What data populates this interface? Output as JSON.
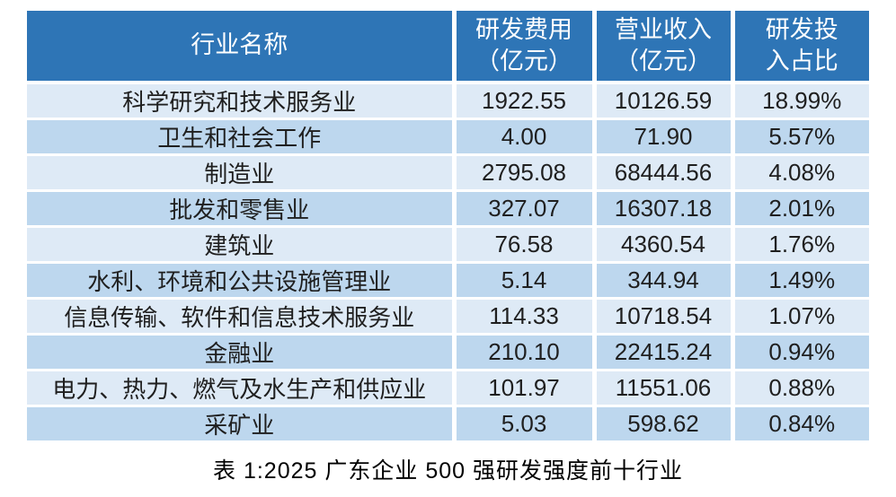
{
  "table": {
    "columns": [
      {
        "label": "行业名称"
      },
      {
        "label": "研发费用\n（亿元）"
      },
      {
        "label": "营业收入\n（亿元）"
      },
      {
        "label": "研发投\n入占比"
      }
    ],
    "rows": [
      {
        "industry": "科学研究和技术服务业",
        "rd_expense": "1922.55",
        "revenue": "10126.59",
        "ratio": "18.99%"
      },
      {
        "industry": "卫生和社会工作",
        "rd_expense": "4.00",
        "revenue": "71.90",
        "ratio": "5.57%"
      },
      {
        "industry": "制造业",
        "rd_expense": "2795.08",
        "revenue": "68444.56",
        "ratio": "4.08%"
      },
      {
        "industry": "批发和零售业",
        "rd_expense": "327.07",
        "revenue": "16307.18",
        "ratio": "2.01%"
      },
      {
        "industry": "建筑业",
        "rd_expense": "76.58",
        "revenue": "4360.54",
        "ratio": "1.76%"
      },
      {
        "industry": "水利、环境和公共设施管理业",
        "rd_expense": "5.14",
        "revenue": "344.94",
        "ratio": "1.49%"
      },
      {
        "industry": "信息传输、软件和信息技术服务业",
        "rd_expense": "114.33",
        "revenue": "10718.54",
        "ratio": "1.07%"
      },
      {
        "industry": "金融业",
        "rd_expense": "210.10",
        "revenue": "22415.24",
        "ratio": "0.94%"
      },
      {
        "industry": "电力、热力、燃气及水生产和供应业",
        "rd_expense": "101.97",
        "revenue": "11551.06",
        "ratio": "0.88%"
      },
      {
        "industry": "采矿业",
        "rd_expense": "5.03",
        "revenue": "598.62",
        "ratio": "0.84%"
      }
    ]
  },
  "caption": {
    "text": "表 1:2025 广东企业 500 强研发强度前十行业"
  },
  "colors": {
    "header_bg": "#2E75B6",
    "row_light": "#DEEAF6",
    "row_dark": "#BDD7EE",
    "header_text": "#FFFFFF",
    "body_text": "#1F1F1F"
  },
  "chart_data": {
    "type": "table",
    "title": "表 1:2025 广东企业 500 强研发强度前十行业",
    "columns": [
      "行业名称",
      "研发费用（亿元）",
      "营业收入（亿元）",
      "研发投入占比"
    ],
    "rows": [
      [
        "科学研究和技术服务业",
        1922.55,
        10126.59,
        "18.99%"
      ],
      [
        "卫生和社会工作",
        4.0,
        71.9,
        "5.57%"
      ],
      [
        "制造业",
        2795.08,
        68444.56,
        "4.08%"
      ],
      [
        "批发和零售业",
        327.07,
        16307.18,
        "2.01%"
      ],
      [
        "建筑业",
        76.58,
        4360.54,
        "1.76%"
      ],
      [
        "水利、环境和公共设施管理业",
        5.14,
        344.94,
        "1.49%"
      ],
      [
        "信息传输、软件和信息技术服务业",
        114.33,
        10718.54,
        "1.07%"
      ],
      [
        "金融业",
        210.1,
        22415.24,
        "0.94%"
      ],
      [
        "电力、热力、燃气及水生产和供应业",
        101.97,
        11551.06,
        "0.88%"
      ],
      [
        "采矿业",
        5.03,
        598.62,
        "0.84%"
      ]
    ],
    "layout": {
      "header_rows": 1,
      "zebra_striping": true,
      "caption_position": "bottom"
    }
  }
}
